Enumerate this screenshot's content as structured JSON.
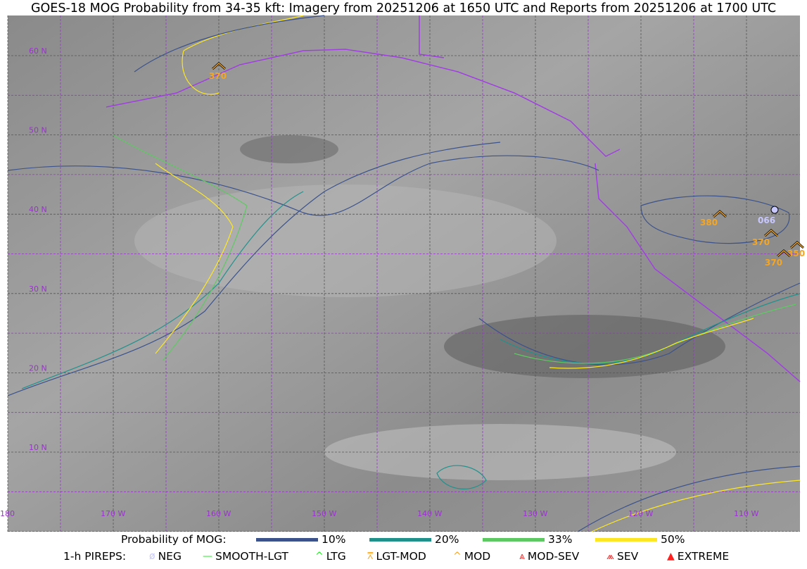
{
  "title": "GOES-18 MOG Probability from 34-35 kft: Imagery from 20251206 at 1650 UTC and Reports from 20251206 at 1700 UTC",
  "map": {
    "lat_labels": [
      "60 N",
      "50 N",
      "40 N",
      "30 N",
      "20 N",
      "10 N"
    ],
    "lon_labels": [
      "180",
      "170 W",
      "160 W",
      "150 W",
      "140 W",
      "130 W",
      "120 W",
      "110 W"
    ],
    "grid_color": "#9933cc",
    "coast_color": "#a040e0",
    "reports": [
      {
        "label": "370",
        "type": "MOD",
        "color": "#f5a623"
      },
      {
        "label": "380",
        "type": "MOD",
        "color": "#f5a623"
      },
      {
        "label": "066",
        "type": "NEG",
        "color": "#c8c8ff"
      },
      {
        "label": "370",
        "type": "MOD",
        "color": "#f5a623"
      },
      {
        "label": "350",
        "type": "MOD",
        "color": "#f5a623"
      },
      {
        "label": "370",
        "type": "MOD",
        "color": "#f5a623"
      }
    ]
  },
  "legend": {
    "prob_title": "Probability of MOG:",
    "prob_levels": [
      {
        "label": "10%",
        "color": "#3b528b"
      },
      {
        "label": "20%",
        "color": "#21918c"
      },
      {
        "label": "33%",
        "color": "#5ec962"
      },
      {
        "label": "50%",
        "color": "#fde725"
      }
    ],
    "pirep_title": "1-h PIREPS:",
    "pireps": [
      {
        "label": "NEG",
        "icon": "neg-circle-slash-icon",
        "color": "#c8c8ff"
      },
      {
        "label": "SMOOTH-LGT",
        "icon": "dash-icon",
        "color": "#22ee22"
      },
      {
        "label": "LTG",
        "icon": "caret-icon",
        "color": "#22ee22"
      },
      {
        "label": "LGT-MOD",
        "icon": "caret-bar-icon",
        "color": "#f5a623"
      },
      {
        "label": "MOD",
        "icon": "caret-icon",
        "color": "#f5a623"
      },
      {
        "label": "MOD-SEV",
        "icon": "double-caret-bar-icon",
        "color": "#ff2020"
      },
      {
        "label": "SEV",
        "icon": "double-caret-icon",
        "color": "#ff2020"
      },
      {
        "label": "EXTREME",
        "icon": "filled-triangle-icon",
        "color": "#ff2020"
      }
    ]
  }
}
